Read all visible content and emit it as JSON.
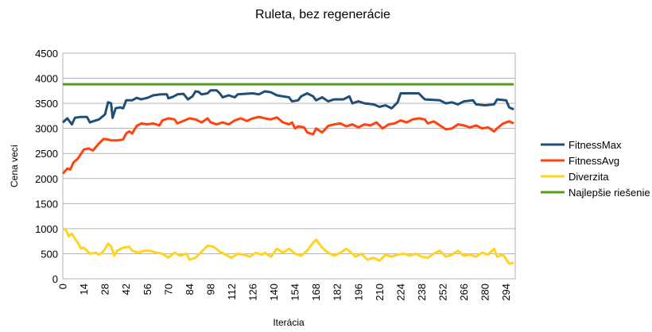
{
  "chart_data": {
    "type": "line",
    "title": "Ruleta, bez regenerácie",
    "xlabel": "Iterácia",
    "ylabel": "Cena vecí",
    "ylim": [
      0,
      4500
    ],
    "xlim": [
      0,
      300
    ],
    "y_ticks": [
      0,
      500,
      1000,
      1500,
      2000,
      2500,
      3000,
      3500,
      4000,
      4500
    ],
    "x_ticks": [
      0,
      14,
      28,
      42,
      56,
      70,
      84,
      98,
      112,
      126,
      140,
      154,
      168,
      182,
      196,
      210,
      224,
      238,
      252,
      266,
      280,
      294
    ],
    "grid": "horizontal",
    "legend_position": "right",
    "series": [
      {
        "name": "FitnessMax",
        "color": "#1f4e79",
        "points": [
          [
            0,
            3120
          ],
          [
            3,
            3200
          ],
          [
            6,
            3080
          ],
          [
            8,
            3210
          ],
          [
            12,
            3230
          ],
          [
            16,
            3230
          ],
          [
            18,
            3120
          ],
          [
            20,
            3140
          ],
          [
            24,
            3180
          ],
          [
            28,
            3280
          ],
          [
            30,
            3520
          ],
          [
            32,
            3500
          ],
          [
            33,
            3210
          ],
          [
            35,
            3400
          ],
          [
            38,
            3420
          ],
          [
            40,
            3400
          ],
          [
            42,
            3560
          ],
          [
            46,
            3560
          ],
          [
            49,
            3610
          ],
          [
            52,
            3580
          ],
          [
            56,
            3610
          ],
          [
            60,
            3660
          ],
          [
            65,
            3680
          ],
          [
            69,
            3680
          ],
          [
            70,
            3600
          ],
          [
            73,
            3630
          ],
          [
            76,
            3680
          ],
          [
            80,
            3690
          ],
          [
            83,
            3580
          ],
          [
            86,
            3640
          ],
          [
            88,
            3740
          ],
          [
            90,
            3730
          ],
          [
            92,
            3680
          ],
          [
            96,
            3700
          ],
          [
            98,
            3760
          ],
          [
            102,
            3760
          ],
          [
            104,
            3700
          ],
          [
            106,
            3620
          ],
          [
            110,
            3660
          ],
          [
            114,
            3620
          ],
          [
            116,
            3680
          ],
          [
            126,
            3700
          ],
          [
            130,
            3680
          ],
          [
            134,
            3740
          ],
          [
            138,
            3720
          ],
          [
            142,
            3660
          ],
          [
            146,
            3640
          ],
          [
            150,
            3620
          ],
          [
            152,
            3540
          ],
          [
            156,
            3560
          ],
          [
            158,
            3640
          ],
          [
            162,
            3700
          ],
          [
            166,
            3640
          ],
          [
            168,
            3560
          ],
          [
            172,
            3620
          ],
          [
            176,
            3540
          ],
          [
            180,
            3580
          ],
          [
            186,
            3580
          ],
          [
            190,
            3640
          ],
          [
            192,
            3500
          ],
          [
            196,
            3540
          ],
          [
            200,
            3500
          ],
          [
            206,
            3480
          ],
          [
            210,
            3430
          ],
          [
            214,
            3460
          ],
          [
            218,
            3400
          ],
          [
            222,
            3520
          ],
          [
            224,
            3700
          ],
          [
            230,
            3700
          ],
          [
            236,
            3700
          ],
          [
            238,
            3640
          ],
          [
            240,
            3580
          ],
          [
            250,
            3560
          ],
          [
            254,
            3500
          ],
          [
            258,
            3520
          ],
          [
            262,
            3480
          ],
          [
            266,
            3540
          ],
          [
            272,
            3560
          ],
          [
            274,
            3480
          ],
          [
            280,
            3460
          ],
          [
            286,
            3480
          ],
          [
            288,
            3580
          ],
          [
            294,
            3560
          ],
          [
            296,
            3420
          ],
          [
            299,
            3380
          ]
        ]
      },
      {
        "name": "FitnessAvg",
        "color": "#ff420e",
        "points": [
          [
            0,
            2100
          ],
          [
            3,
            2200
          ],
          [
            5,
            2180
          ],
          [
            7,
            2320
          ],
          [
            10,
            2400
          ],
          [
            14,
            2580
          ],
          [
            17,
            2600
          ],
          [
            20,
            2560
          ],
          [
            24,
            2700
          ],
          [
            27,
            2790
          ],
          [
            30,
            2780
          ],
          [
            32,
            2760
          ],
          [
            36,
            2760
          ],
          [
            40,
            2780
          ],
          [
            42,
            2900
          ],
          [
            44,
            2940
          ],
          [
            46,
            2900
          ],
          [
            49,
            3050
          ],
          [
            52,
            3100
          ],
          [
            56,
            3080
          ],
          [
            60,
            3100
          ],
          [
            64,
            3060
          ],
          [
            66,
            3160
          ],
          [
            70,
            3200
          ],
          [
            74,
            3180
          ],
          [
            76,
            3100
          ],
          [
            80,
            3150
          ],
          [
            84,
            3200
          ],
          [
            88,
            3180
          ],
          [
            92,
            3120
          ],
          [
            96,
            3200
          ],
          [
            98,
            3120
          ],
          [
            102,
            3080
          ],
          [
            106,
            3120
          ],
          [
            110,
            3080
          ],
          [
            114,
            3160
          ],
          [
            118,
            3200
          ],
          [
            122,
            3150
          ],
          [
            126,
            3200
          ],
          [
            130,
            3230
          ],
          [
            134,
            3200
          ],
          [
            138,
            3180
          ],
          [
            142,
            3220
          ],
          [
            146,
            3120
          ],
          [
            150,
            3080
          ],
          [
            152,
            3120
          ],
          [
            154,
            3000
          ],
          [
            156,
            3040
          ],
          [
            160,
            3020
          ],
          [
            162,
            2920
          ],
          [
            166,
            2880
          ],
          [
            168,
            3000
          ],
          [
            172,
            2920
          ],
          [
            176,
            3050
          ],
          [
            180,
            3080
          ],
          [
            184,
            3100
          ],
          [
            188,
            3040
          ],
          [
            192,
            3080
          ],
          [
            196,
            3020
          ],
          [
            200,
            3080
          ],
          [
            204,
            3060
          ],
          [
            208,
            3120
          ],
          [
            212,
            3000
          ],
          [
            216,
            3080
          ],
          [
            220,
            3100
          ],
          [
            224,
            3160
          ],
          [
            228,
            3120
          ],
          [
            232,
            3180
          ],
          [
            236,
            3200
          ],
          [
            240,
            3180
          ],
          [
            242,
            3100
          ],
          [
            246,
            3140
          ],
          [
            250,
            3060
          ],
          [
            254,
            2980
          ],
          [
            258,
            3000
          ],
          [
            262,
            3080
          ],
          [
            266,
            3060
          ],
          [
            270,
            3020
          ],
          [
            274,
            3060
          ],
          [
            278,
            3000
          ],
          [
            282,
            3020
          ],
          [
            286,
            2940
          ],
          [
            288,
            3000
          ],
          [
            292,
            3100
          ],
          [
            296,
            3140
          ],
          [
            299,
            3100
          ]
        ]
      },
      {
        "name": "Diverzita",
        "color": "#ffd320",
        "points": [
          [
            0,
            1000
          ],
          [
            2,
            980
          ],
          [
            4,
            850
          ],
          [
            6,
            900
          ],
          [
            8,
            800
          ],
          [
            10,
            720
          ],
          [
            12,
            600
          ],
          [
            14,
            620
          ],
          [
            18,
            500
          ],
          [
            22,
            520
          ],
          [
            24,
            480
          ],
          [
            26,
            520
          ],
          [
            28,
            600
          ],
          [
            30,
            700
          ],
          [
            32,
            650
          ],
          [
            34,
            460
          ],
          [
            36,
            560
          ],
          [
            40,
            620
          ],
          [
            44,
            640
          ],
          [
            46,
            560
          ],
          [
            50,
            520
          ],
          [
            54,
            560
          ],
          [
            58,
            560
          ],
          [
            62,
            520
          ],
          [
            66,
            500
          ],
          [
            70,
            420
          ],
          [
            74,
            520
          ],
          [
            78,
            460
          ],
          [
            82,
            500
          ],
          [
            84,
            380
          ],
          [
            88,
            420
          ],
          [
            92,
            540
          ],
          [
            96,
            660
          ],
          [
            100,
            640
          ],
          [
            104,
            540
          ],
          [
            108,
            480
          ],
          [
            112,
            420
          ],
          [
            116,
            500
          ],
          [
            120,
            480
          ],
          [
            124,
            440
          ],
          [
            128,
            520
          ],
          [
            132,
            480
          ],
          [
            134,
            520
          ],
          [
            138,
            440
          ],
          [
            142,
            600
          ],
          [
            146,
            520
          ],
          [
            150,
            600
          ],
          [
            154,
            500
          ],
          [
            158,
            460
          ],
          [
            162,
            560
          ],
          [
            166,
            720
          ],
          [
            168,
            780
          ],
          [
            172,
            620
          ],
          [
            176,
            520
          ],
          [
            180,
            460
          ],
          [
            184,
            520
          ],
          [
            188,
            600
          ],
          [
            192,
            500
          ],
          [
            194,
            440
          ],
          [
            198,
            500
          ],
          [
            202,
            380
          ],
          [
            206,
            420
          ],
          [
            210,
            360
          ],
          [
            214,
            480
          ],
          [
            218,
            440
          ],
          [
            222,
            480
          ],
          [
            226,
            500
          ],
          [
            230,
            460
          ],
          [
            234,
            500
          ],
          [
            238,
            440
          ],
          [
            242,
            420
          ],
          [
            246,
            500
          ],
          [
            250,
            560
          ],
          [
            254,
            440
          ],
          [
            258,
            480
          ],
          [
            262,
            560
          ],
          [
            266,
            460
          ],
          [
            270,
            480
          ],
          [
            274,
            440
          ],
          [
            278,
            520
          ],
          [
            282,
            480
          ],
          [
            286,
            600
          ],
          [
            288,
            440
          ],
          [
            292,
            480
          ],
          [
            296,
            300
          ],
          [
            299,
            320
          ]
        ]
      },
      {
        "name": "Najlepšie riešenie",
        "color": "#579d1c",
        "points": [
          [
            0,
            3880
          ],
          [
            299,
            3880
          ]
        ]
      }
    ]
  }
}
